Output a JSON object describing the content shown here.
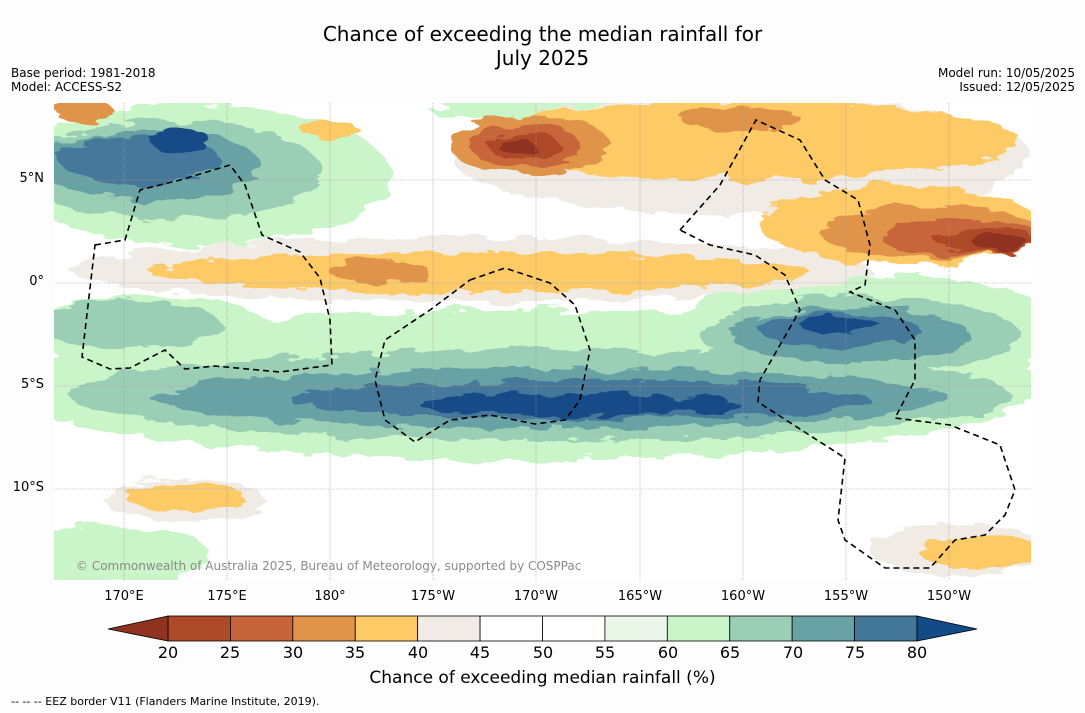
{
  "header": {
    "title_line1": "Chance of exceeding the median rainfall for",
    "title_line2": "July 2025",
    "base_period": "Base period: 1981-2018",
    "model": "Model: ACCESS-S2",
    "model_run": "Model run: 10/05/2025",
    "issued": "Issued: 12/05/2025"
  },
  "map": {
    "credit": "© Commonwealth of Australia 2025, Bureau of Meteorology, supported by COSPPac",
    "lat_labels": [
      "5°N",
      "0°",
      "5°S",
      "10°S"
    ],
    "lon_labels": [
      "170°E",
      "175°E",
      "180°",
      "175°W",
      "170°W",
      "165°W",
      "160°W",
      "155°W",
      "150°W"
    ]
  },
  "colorbar": {
    "ticks": [
      "20",
      "25",
      "30",
      "35",
      "40",
      "45",
      "50",
      "55",
      "60",
      "65",
      "70",
      "75",
      "80"
    ],
    "colors": [
      "#8f3320",
      "#ad4a28",
      "#c7653a",
      "#e0944a",
      "#fdca65",
      "#f0ebe5",
      "#ffffff",
      "#ffffff",
      "#eaf6e8",
      "#c9f5c8",
      "#9acfb5",
      "#68a2a4",
      "#44789a",
      "#134b87"
    ],
    "label": "Chance of exceeding median rainfall (%)"
  },
  "footer": {
    "legend": "--  --  -- EEZ border V11 (Flanders Marine Institute, 2019)."
  }
}
